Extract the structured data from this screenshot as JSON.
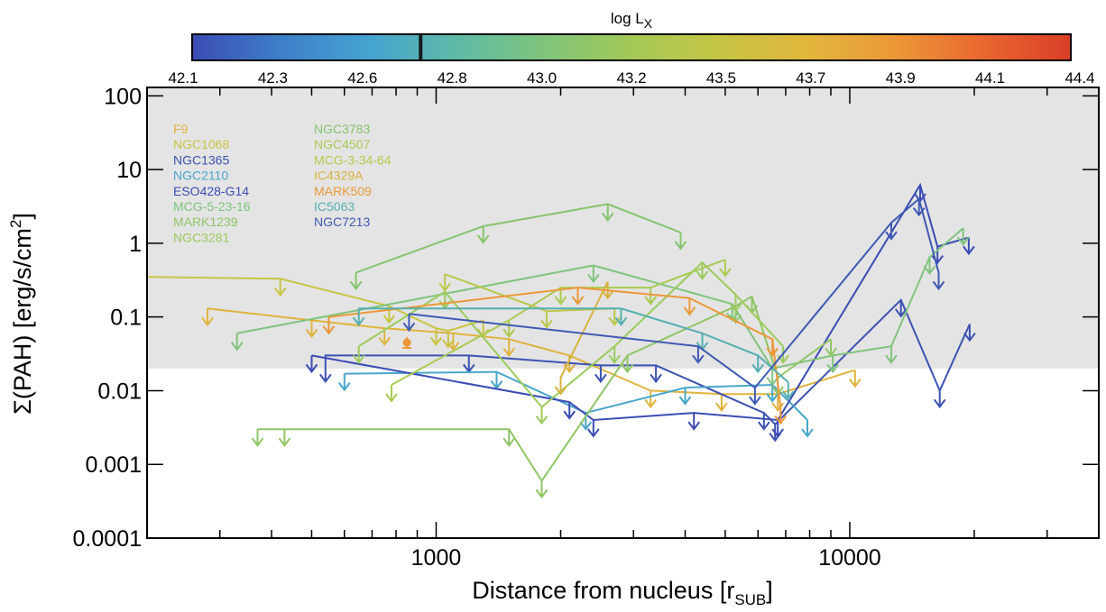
{
  "chart_data": {
    "type": "line",
    "xlabel": "Distance from nucleus [r",
    "xlabel_sub": "SUB",
    "xlabel_end": "]",
    "ylabel": "Σ(PAH) [erg/s/cm",
    "ylabel_sup": "2",
    "ylabel_end": "]",
    "x_scale": "log",
    "y_scale": "log",
    "xlim": [
      200,
      40000
    ],
    "ylim": [
      0.0001,
      130
    ],
    "x_ticks": [
      {
        "v": 1000,
        "label": "1000"
      },
      {
        "v": 10000,
        "label": "10000"
      }
    ],
    "y_ticks": [
      {
        "v": 100,
        "label": "100"
      },
      {
        "v": 10,
        "label": "10"
      },
      {
        "v": 1,
        "label": "1"
      },
      {
        "v": 0.1,
        "label": "0.1"
      },
      {
        "v": 0.01,
        "label": "0.01"
      },
      {
        "v": 0.001,
        "label": "0.001"
      },
      {
        "v": 0.0001,
        "label": "0.0001"
      }
    ],
    "shaded_region_y": [
      0.02,
      130
    ],
    "colorbar": {
      "title": "log L",
      "title_sub": "X",
      "min": 42.0,
      "max": 44.5,
      "labels": [
        "42.1",
        "42.3",
        "42.6",
        "42.8",
        "43.0",
        "43.2",
        "43.5",
        "43.7",
        "43.9",
        "44.1",
        "44.4"
      ],
      "marker_value": 42.65,
      "colors": [
        "#3b4cb4",
        "#3e7ec8",
        "#44a3d0",
        "#5ebaa8",
        "#7fc47c",
        "#a3c957",
        "#c7c544",
        "#e2b73d",
        "#ec9838",
        "#e9672f",
        "#d93f28"
      ]
    },
    "legend_col1": [
      "F9",
      "NGC1068",
      "NGC1365",
      "NGC2110",
      "ESO428-G14",
      "MCG-5-23-16",
      "MARK1239",
      "NGC3281"
    ],
    "legend_col2": [
      "NGC3783",
      "NGC4507",
      "MCG-3-34-64",
      "IC4329A",
      "MARK509",
      "IC5063",
      "NGC7213"
    ],
    "series": [
      {
        "name": "F9",
        "color": "#e0b33c",
        "points": [
          [
            280,
            0.13,
            1
          ],
          [
            500,
            0.09,
            1
          ],
          [
            750,
            0.07,
            1
          ],
          [
            1100,
            0.06,
            1
          ],
          [
            1500,
            0.05,
            1
          ],
          [
            2100,
            0.03,
            1
          ],
          [
            3300,
            0.01,
            1
          ],
          [
            4900,
            0.009,
            1
          ],
          [
            6700,
            0.009,
            1
          ],
          [
            10300,
            0.019,
            1
          ]
        ]
      },
      {
        "name": "NGC1068",
        "color": "#c9c443",
        "points": [
          [
            200,
            0.35,
            0
          ],
          [
            420,
            0.33,
            1
          ],
          [
            770,
            0.14,
            1
          ],
          [
            1000,
            0.07,
            1
          ],
          [
            1070,
            0.065,
            1
          ],
          [
            1300,
            0.09,
            1
          ]
        ]
      },
      {
        "name": "NGC1365",
        "color": "#3c52b2",
        "points": [
          [
            540,
            0.022,
            1
          ],
          [
            540,
            0.03,
            0
          ],
          [
            1200,
            0.03,
            1
          ],
          [
            2500,
            0.022,
            1
          ],
          [
            3400,
            0.022,
            1
          ],
          [
            6200,
            0.005,
            1
          ],
          [
            6600,
            0.0035,
            1
          ],
          [
            13300,
            0.17,
            1
          ],
          [
            16500,
            0.01,
            1
          ],
          [
            19500,
            0.08,
            1
          ]
        ]
      },
      {
        "name": "NGC2110",
        "color": "#48a6cb",
        "points": [
          [
            600,
            0.017,
            1
          ],
          [
            1400,
            0.018,
            1
          ],
          [
            2300,
            0.005,
            1
          ],
          [
            4000,
            0.011,
            1
          ],
          [
            6500,
            0.012,
            1
          ],
          [
            7900,
            0.004,
            1
          ]
        ]
      },
      {
        "name": "ESO428-G14",
        "color": "#3b4cb4",
        "points": [
          [
            500,
            0.03,
            1
          ],
          [
            2100,
            0.007,
            1
          ],
          [
            2400,
            0.004,
            1
          ],
          [
            4200,
            0.005,
            1
          ],
          [
            6700,
            0.004,
            1
          ],
          [
            14800,
            6.2,
            1
          ],
          [
            16300,
            0.9,
            1
          ],
          [
            19400,
            1.2,
            1
          ]
        ]
      },
      {
        "name": "MCG-5-23-16",
        "color": "#7fc47c",
        "points": [
          [
            330,
            0.06,
            1
          ],
          [
            2400,
            0.5,
            1
          ],
          [
            5200,
            0.15,
            1
          ],
          [
            6500,
            0.02,
            1
          ],
          [
            9100,
            0.03,
            1
          ],
          [
            12600,
            0.04,
            1
          ],
          [
            15600,
            0.65,
            1
          ],
          [
            18800,
            1.6,
            1
          ]
        ]
      },
      {
        "name": "MARK1239",
        "color": "#8fc665",
        "points": [
          [
            370,
            0.003,
            1
          ],
          [
            430,
            0.003,
            1
          ],
          [
            1500,
            0.003,
            1
          ],
          [
            1800,
            0.0006,
            1
          ],
          [
            2900,
            0.03,
            1
          ],
          [
            5300,
            0.14,
            1
          ],
          [
            5800,
            0.19,
            1
          ],
          [
            6700,
            0.015,
            1
          ],
          [
            9000,
            0.05,
            1
          ]
        ]
      },
      {
        "name": "NGC3281",
        "color": "#9ccb5c",
        "points": [
          [
            650,
            0.04,
            1
          ],
          [
            1050,
            0.22,
            1
          ],
          [
            1800,
            0.006,
            1
          ],
          [
            2700,
            0.04,
            1
          ],
          [
            4400,
            0.55,
            1
          ],
          [
            5300,
            0.2,
            1
          ],
          [
            6900,
            0.04,
            1
          ]
        ]
      },
      {
        "name": "NGC3783",
        "color": "#86c46d",
        "points": [
          [
            640,
            0.4,
            1
          ],
          [
            1300,
            1.7,
            1
          ],
          [
            2600,
            3.4,
            1
          ],
          [
            3900,
            1.4,
            1
          ]
        ]
      },
      {
        "name": "NGC4507",
        "color": "#aacb52",
        "points": [
          [
            780,
            0.012,
            1
          ],
          [
            1500,
            0.09,
            1
          ],
          [
            2000,
            0.25,
            1
          ],
          [
            3300,
            0.25,
            1
          ],
          [
            5000,
            0.6,
            1
          ]
        ]
      },
      {
        "name": "MCG-3-34-64",
        "color": "#bcc74a",
        "points": [
          [
            1050,
            0.38,
            1
          ],
          [
            1850,
            0.12,
            1
          ],
          [
            2700,
            0.13,
            1
          ]
        ]
      },
      {
        "name": "IC4329A",
        "color": "#d8b23e",
        "points": [
          [
            2000,
            0.015,
            1
          ],
          [
            2600,
            0.3,
            1
          ]
        ]
      },
      {
        "name": "MARK509",
        "color": "#ec9838",
        "points": [
          [
            550,
            0.1,
            1
          ],
          [
            2200,
            0.25,
            1
          ],
          [
            4100,
            0.18,
            1
          ],
          [
            6500,
            0.05,
            1
          ],
          [
            6800,
            0.006,
            1
          ]
        ]
      },
      {
        "name": "IC5063",
        "color": "#55afb0",
        "points": [
          [
            650,
            0.13,
            1
          ],
          [
            2800,
            0.13,
            1
          ],
          [
            4400,
            0.06,
            1
          ],
          [
            6000,
            0.03,
            1
          ],
          [
            7100,
            0.013,
            1
          ]
        ]
      },
      {
        "name": "NGC7213",
        "color": "#3f5ab4",
        "points": [
          [
            860,
            0.11,
            1
          ],
          [
            4300,
            0.04,
            1
          ],
          [
            5900,
            0.011,
            1
          ],
          [
            12600,
            1.9,
            1
          ],
          [
            14700,
            4.0,
            1
          ],
          [
            16400,
            0.4,
            1
          ]
        ]
      }
    ],
    "measured_point": {
      "x": 850,
      "y": 0.045,
      "color": "#ec9838"
    }
  }
}
